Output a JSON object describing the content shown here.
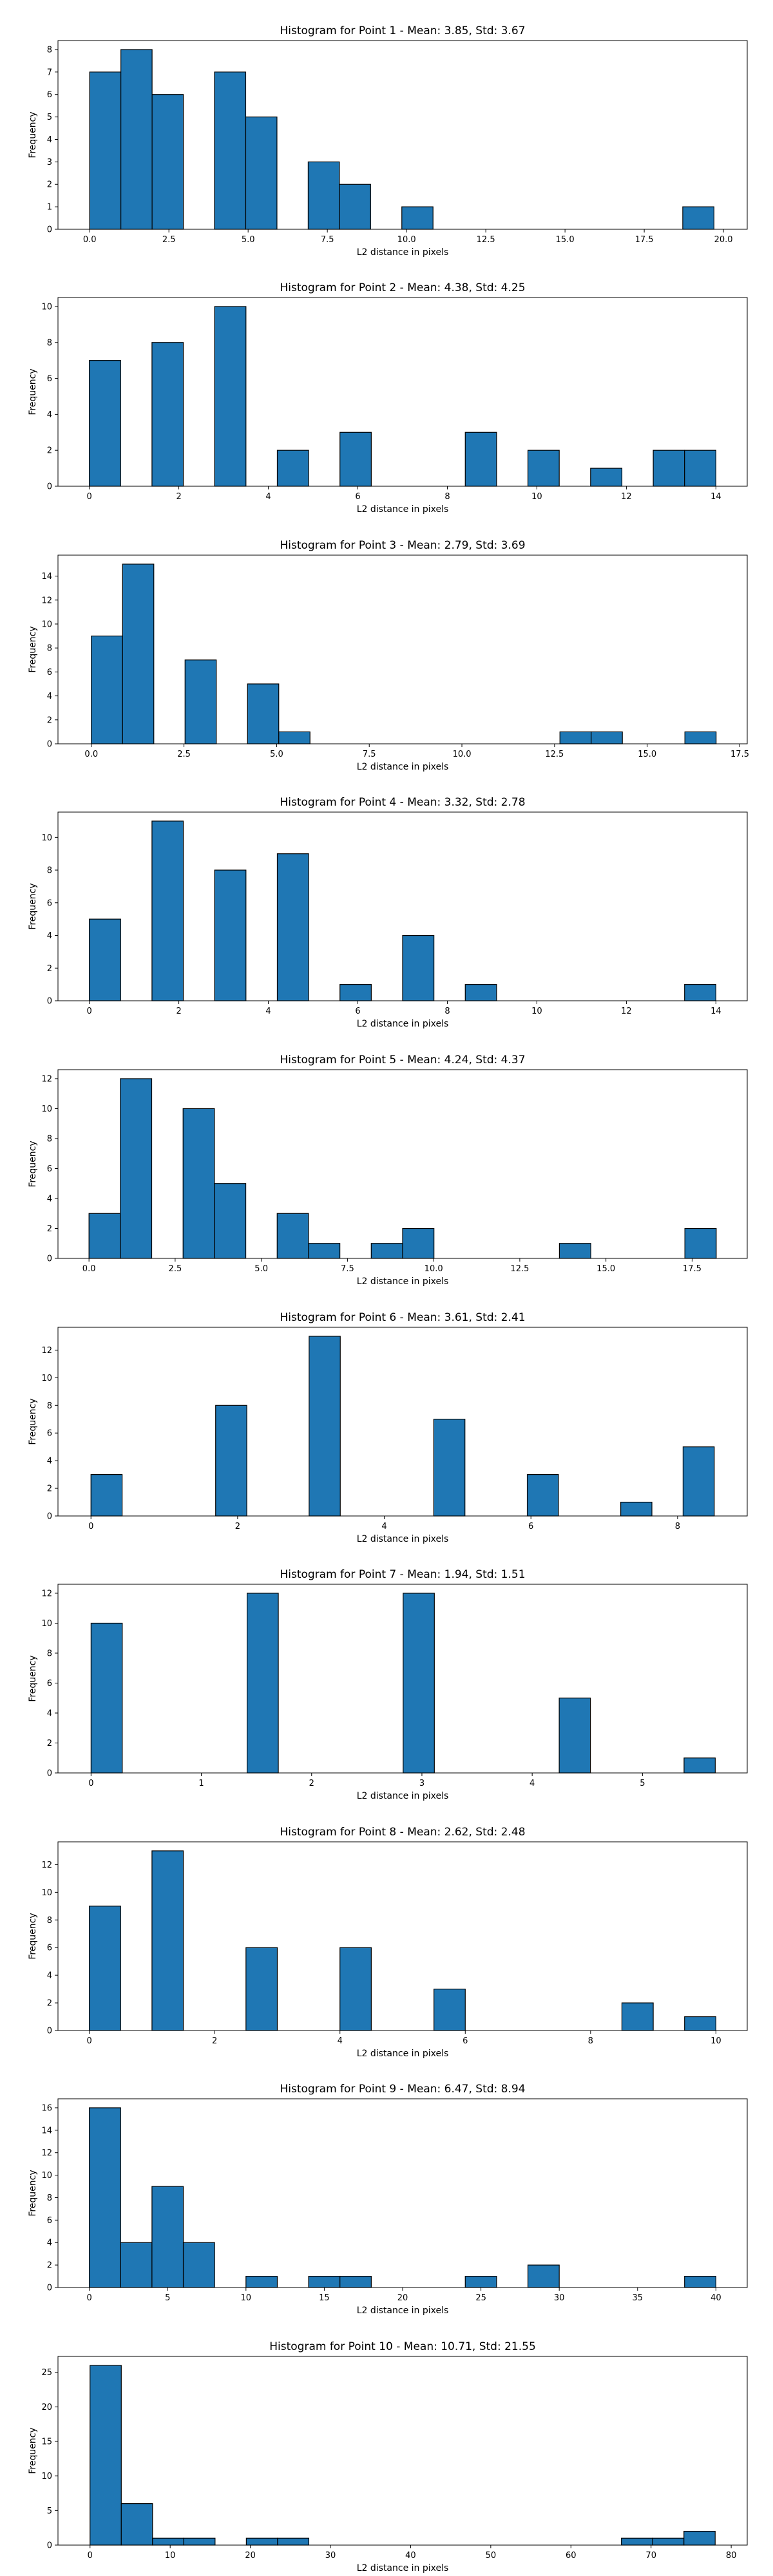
{
  "chart_data": [
    {
      "type": "bar",
      "title": "Histogram for Point 1 - Mean: 3.85, Std: 3.67",
      "xlabel": "L2 distance in pixels",
      "ylabel": "Frequency",
      "xlim": [
        -1.0,
        20.75
      ],
      "ylim": [
        0,
        8.4
      ],
      "x_ticks": [
        {
          "v": 0,
          "t": "0.0"
        },
        {
          "v": 2.5,
          "t": "2.5"
        },
        {
          "v": 5,
          "t": "5.0"
        },
        {
          "v": 7.5,
          "t": "7.5"
        },
        {
          "v": 10,
          "t": "10.0"
        },
        {
          "v": 12.5,
          "t": "12.5"
        },
        {
          "v": 15,
          "t": "15.0"
        },
        {
          "v": 17.5,
          "t": "17.5"
        },
        {
          "v": 20,
          "t": "20.0"
        }
      ],
      "y_ticks": [
        0,
        1,
        2,
        3,
        4,
        5,
        6,
        7,
        8
      ],
      "bin_edges": [
        0,
        0.985,
        1.97,
        2.955,
        3.94,
        4.925,
        5.91,
        6.895,
        7.88,
        8.865,
        9.85,
        10.835,
        11.82,
        12.805,
        13.79,
        14.775,
        15.76,
        16.745,
        17.73,
        18.715,
        19.7
      ],
      "values": [
        7,
        8,
        6,
        0,
        7,
        5,
        0,
        3,
        2,
        0,
        1,
        0,
        0,
        0,
        0,
        0,
        0,
        0,
        0,
        1
      ]
    },
    {
      "type": "bar",
      "title": "Histogram for Point 2 - Mean: 4.38, Std: 4.25",
      "xlabel": "L2 distance in pixels",
      "ylabel": "Frequency",
      "xlim": [
        -0.7,
        14.7
      ],
      "ylim": [
        0,
        10.5
      ],
      "x_ticks": [
        {
          "v": 0,
          "t": "0"
        },
        {
          "v": 2,
          "t": "2"
        },
        {
          "v": 4,
          "t": "4"
        },
        {
          "v": 6,
          "t": "6"
        },
        {
          "v": 8,
          "t": "8"
        },
        {
          "v": 10,
          "t": "10"
        },
        {
          "v": 12,
          "t": "12"
        },
        {
          "v": 14,
          "t": "14"
        }
      ],
      "y_ticks": [
        0,
        2,
        4,
        6,
        8,
        10
      ],
      "bin_edges": [
        0,
        0.7,
        1.4,
        2.1,
        2.8,
        3.5,
        4.2,
        4.9,
        5.6,
        6.3,
        7.0,
        7.7,
        8.4,
        9.1,
        9.8,
        10.5,
        11.2,
        11.9,
        12.6,
        13.3,
        14.0
      ],
      "values": [
        7,
        0,
        8,
        0,
        10,
        0,
        2,
        0,
        3,
        0,
        0,
        0,
        3,
        0,
        2,
        0,
        1,
        0,
        2,
        2
      ]
    },
    {
      "type": "bar",
      "title": "Histogram for Point 3 - Mean: 2.79, Std: 3.69",
      "xlabel": "L2 distance in pixels",
      "ylabel": "Frequency",
      "xlim": [
        -0.9,
        17.7
      ],
      "ylim": [
        0,
        15.75
      ],
      "x_ticks": [
        {
          "v": 0,
          "t": "0.0"
        },
        {
          "v": 2.5,
          "t": "2.5"
        },
        {
          "v": 5,
          "t": "5.0"
        },
        {
          "v": 7.5,
          "t": "7.5"
        },
        {
          "v": 10,
          "t": "10.0"
        },
        {
          "v": 12.5,
          "t": "12.5"
        },
        {
          "v": 15,
          "t": "15.0"
        },
        {
          "v": 17.5,
          "t": "17.5"
        }
      ],
      "y_ticks": [
        0,
        2,
        4,
        6,
        8,
        10,
        12,
        14
      ],
      "bin_edges": [
        0,
        0.843,
        1.686,
        2.529,
        3.372,
        4.215,
        5.058,
        5.901,
        6.744,
        7.587,
        8.43,
        9.273,
        10.116,
        10.959,
        11.802,
        12.645,
        13.488,
        14.331,
        15.174,
        16.017,
        16.86
      ],
      "values": [
        9,
        15,
        0,
        7,
        0,
        5,
        1,
        0,
        0,
        0,
        0,
        0,
        0,
        0,
        0,
        1,
        1,
        0,
        0,
        1
      ]
    },
    {
      "type": "bar",
      "title": "Histogram for Point 4 - Mean: 3.32, Std: 2.78",
      "xlabel": "L2 distance in pixels",
      "ylabel": "Frequency",
      "xlim": [
        -0.7,
        14.7
      ],
      "ylim": [
        0,
        11.55
      ],
      "x_ticks": [
        {
          "v": 0,
          "t": "0"
        },
        {
          "v": 2,
          "t": "2"
        },
        {
          "v": 4,
          "t": "4"
        },
        {
          "v": 6,
          "t": "6"
        },
        {
          "v": 8,
          "t": "8"
        },
        {
          "v": 10,
          "t": "10"
        },
        {
          "v": 12,
          "t": "12"
        },
        {
          "v": 14,
          "t": "14"
        }
      ],
      "y_ticks": [
        0,
        2,
        4,
        6,
        8,
        10
      ],
      "bin_edges": [
        0,
        0.7,
        1.4,
        2.1,
        2.8,
        3.5,
        4.2,
        4.9,
        5.6,
        6.3,
        7.0,
        7.7,
        8.4,
        9.1,
        9.8,
        10.5,
        11.2,
        11.9,
        12.6,
        13.3,
        14.0
      ],
      "values": [
        5,
        0,
        11,
        0,
        8,
        0,
        9,
        0,
        1,
        0,
        4,
        0,
        1,
        0,
        0,
        0,
        0,
        0,
        0,
        1
      ]
    },
    {
      "type": "bar",
      "title": "Histogram for Point 5 - Mean: 4.24, Std: 4.37",
      "xlabel": "L2 distance in pixels",
      "ylabel": "Frequency",
      "xlim": [
        -0.9,
        19.1
      ],
      "ylim": [
        0,
        12.6
      ],
      "x_ticks": [
        {
          "v": 0,
          "t": "0.0"
        },
        {
          "v": 2.5,
          "t": "2.5"
        },
        {
          "v": 5,
          "t": "5.0"
        },
        {
          "v": 7.5,
          "t": "7.5"
        },
        {
          "v": 10,
          "t": "10.0"
        },
        {
          "v": 12.5,
          "t": "12.5"
        },
        {
          "v": 15,
          "t": "15.0"
        },
        {
          "v": 17.5,
          "t": "17.5"
        }
      ],
      "y_ticks": [
        0,
        2,
        4,
        6,
        8,
        10,
        12
      ],
      "bin_edges": [
        0,
        0.91,
        1.82,
        2.73,
        3.64,
        4.55,
        5.46,
        6.37,
        7.28,
        8.19,
        9.1,
        10.01,
        10.92,
        11.83,
        12.74,
        13.65,
        14.56,
        15.47,
        16.38,
        17.29,
        18.2
      ],
      "values": [
        3,
        12,
        0,
        10,
        5,
        0,
        3,
        1,
        0,
        1,
        2,
        0,
        0,
        0,
        0,
        1,
        0,
        0,
        0,
        2
      ]
    },
    {
      "type": "bar",
      "title": "Histogram for Point 6 - Mean: 3.61, Std: 2.41",
      "xlabel": "L2 distance in pixels",
      "ylabel": "Frequency",
      "xlim": [
        -0.45,
        8.95
      ],
      "ylim": [
        0,
        13.65
      ],
      "x_ticks": [
        {
          "v": 0,
          "t": "0"
        },
        {
          "v": 2,
          "t": "2"
        },
        {
          "v": 4,
          "t": "4"
        },
        {
          "v": 6,
          "t": "6"
        },
        {
          "v": 8,
          "t": "8"
        }
      ],
      "y_ticks": [
        0,
        2,
        4,
        6,
        8,
        10,
        12
      ],
      "bin_edges": [
        0,
        0.425,
        0.85,
        1.275,
        1.7,
        2.125,
        2.55,
        2.975,
        3.4,
        3.825,
        4.25,
        4.675,
        5.1,
        5.525,
        5.95,
        6.375,
        6.8,
        7.225,
        7.65,
        8.075,
        8.5
      ],
      "values": [
        3,
        0,
        0,
        0,
        8,
        0,
        0,
        13,
        0,
        0,
        0,
        7,
        0,
        0,
        3,
        0,
        0,
        1,
        0,
        5
      ]
    },
    {
      "type": "bar",
      "title": "Histogram for Point 7 - Mean: 1.94, Std: 1.51",
      "xlabel": "L2 distance in pixels",
      "ylabel": "Frequency",
      "xlim": [
        -0.3,
        5.95
      ],
      "ylim": [
        0,
        12.6
      ],
      "x_ticks": [
        {
          "v": 0,
          "t": "0"
        },
        {
          "v": 1,
          "t": "1"
        },
        {
          "v": 2,
          "t": "2"
        },
        {
          "v": 3,
          "t": "3"
        },
        {
          "v": 4,
          "t": "4"
        },
        {
          "v": 5,
          "t": "5"
        }
      ],
      "y_ticks": [
        0,
        2,
        4,
        6,
        8,
        10,
        12
      ],
      "bin_edges": [
        0,
        0.283,
        0.566,
        0.849,
        1.132,
        1.415,
        1.698,
        1.981,
        2.264,
        2.547,
        2.83,
        3.113,
        3.396,
        3.679,
        3.962,
        4.245,
        4.528,
        4.811,
        5.094,
        5.377,
        5.66
      ],
      "values": [
        10,
        0,
        0,
        0,
        0,
        12,
        0,
        0,
        0,
        0,
        12,
        0,
        0,
        0,
        0,
        5,
        0,
        0,
        0,
        1
      ]
    },
    {
      "type": "bar",
      "title": "Histogram for Point 8 - Mean: 2.62, Std: 2.48",
      "xlabel": "L2 distance in pixels",
      "ylabel": "Frequency",
      "xlim": [
        -0.5,
        10.5
      ],
      "ylim": [
        0,
        13.65
      ],
      "x_ticks": [
        {
          "v": 0,
          "t": "0"
        },
        {
          "v": 2,
          "t": "2"
        },
        {
          "v": 4,
          "t": "4"
        },
        {
          "v": 6,
          "t": "6"
        },
        {
          "v": 8,
          "t": "8"
        },
        {
          "v": 10,
          "t": "10"
        }
      ],
      "y_ticks": [
        0,
        2,
        4,
        6,
        8,
        10,
        12
      ],
      "bin_edges": [
        0,
        0.5,
        1.0,
        1.5,
        2.0,
        2.5,
        3.0,
        3.5,
        4.0,
        4.5,
        5.0,
        5.5,
        6.0,
        6.5,
        7.0,
        7.5,
        8.0,
        8.5,
        9.0,
        9.5,
        10.0
      ],
      "values": [
        9,
        0,
        13,
        0,
        0,
        6,
        0,
        0,
        6,
        0,
        0,
        3,
        0,
        0,
        0,
        0,
        0,
        2,
        0,
        1
      ]
    },
    {
      "type": "bar",
      "title": "Histogram for Point 9 - Mean: 6.47, Std: 8.94",
      "xlabel": "L2 distance in pixels",
      "ylabel": "Frequency",
      "xlim": [
        -2.0,
        42.0
      ],
      "ylim": [
        0,
        16.8
      ],
      "x_ticks": [
        {
          "v": 0,
          "t": "0"
        },
        {
          "v": 5,
          "t": "5"
        },
        {
          "v": 10,
          "t": "10"
        },
        {
          "v": 15,
          "t": "15"
        },
        {
          "v": 20,
          "t": "20"
        },
        {
          "v": 25,
          "t": "25"
        },
        {
          "v": 30,
          "t": "30"
        },
        {
          "v": 35,
          "t": "35"
        },
        {
          "v": 40,
          "t": "40"
        }
      ],
      "y_ticks": [
        0,
        2,
        4,
        6,
        8,
        10,
        12,
        14,
        16
      ],
      "bin_edges": [
        0,
        2.0,
        4.0,
        6.0,
        8.0,
        10.0,
        12.0,
        14.0,
        16.0,
        18.0,
        20.0,
        22.0,
        24.0,
        26.0,
        28.0,
        30.0,
        32.0,
        34.0,
        36.0,
        38.0,
        40.0
      ],
      "values": [
        16,
        4,
        9,
        4,
        0,
        1,
        0,
        1,
        1,
        0,
        0,
        0,
        1,
        0,
        2,
        0,
        0,
        0,
        0,
        1
      ]
    },
    {
      "type": "bar",
      "title": "Histogram for Point 10 - Mean: 10.71, Std: 21.55",
      "xlabel": "L2 distance in pixels",
      "ylabel": "Frequency",
      "xlim": [
        -4.0,
        82.0
      ],
      "ylim": [
        0,
        27.3
      ],
      "x_ticks": [
        {
          "v": 0,
          "t": "0"
        },
        {
          "v": 10,
          "t": "10"
        },
        {
          "v": 20,
          "t": "20"
        },
        {
          "v": 30,
          "t": "30"
        },
        {
          "v": 40,
          "t": "40"
        },
        {
          "v": 50,
          "t": "50"
        },
        {
          "v": 60,
          "t": "60"
        },
        {
          "v": 70,
          "t": "70"
        },
        {
          "v": 80,
          "t": "80"
        }
      ],
      "y_ticks": [
        0,
        5,
        10,
        15,
        20,
        25
      ],
      "bin_edges": [
        0,
        3.9,
        7.8,
        11.7,
        15.6,
        19.5,
        23.4,
        27.3,
        31.2,
        35.1,
        39.0,
        42.9,
        46.8,
        50.7,
        54.6,
        58.5,
        62.4,
        66.3,
        70.2,
        74.1,
        78.0
      ],
      "values": [
        26,
        6,
        1,
        1,
        0,
        1,
        1,
        0,
        0,
        0,
        0,
        0,
        0,
        0,
        0,
        0,
        0,
        1,
        1,
        2
      ]
    }
  ]
}
